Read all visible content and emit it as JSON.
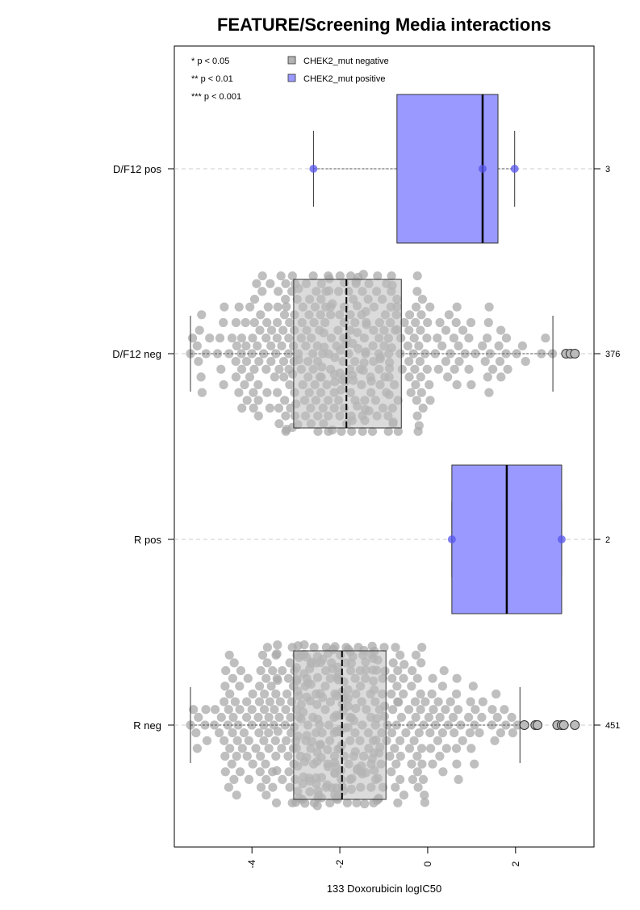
{
  "chart_data": {
    "type": "box",
    "orientation": "horizontal",
    "title": "FEATURE/Screening Media interactions",
    "xlabel": "133 Doxorubicin logIC50",
    "ylabel": "",
    "xlim": [
      -5.6,
      3.7
    ],
    "xticks": [
      -4,
      -2,
      0,
      2
    ],
    "xtick_labels": [
      "-4",
      "-2",
      "0",
      "2"
    ],
    "grid": false,
    "legend": {
      "placement": "top-left",
      "significance": [
        "* p < 0.05",
        "** p < 0.01",
        "*** p < 0.001"
      ],
      "entries": [
        {
          "label": "CHEK2_mut negative",
          "color": "#b3b3b3"
        },
        {
          "label": "CHEK2_mut positive",
          "color": "#9999ff"
        }
      ]
    },
    "colors": {
      "negative_box": "#bdbdbd",
      "positive_box": "#9999ff",
      "negative_point": "#aaaaaa",
      "positive_point": "#5555ee"
    },
    "groups": [
      {
        "label": "D/F12 pos",
        "status": "positive",
        "n_label": "3",
        "whisker_low": -2.6,
        "q1": -0.7,
        "median": 1.25,
        "q3": 1.6,
        "whisker_high": 1.98,
        "points": [
          -2.6,
          1.25,
          1.98
        ],
        "outliers": []
      },
      {
        "label": "D/F12 neg",
        "status": "negative",
        "n_label": "376",
        "whisker_low": -5.4,
        "q1": -3.05,
        "median": -1.85,
        "q3": -0.6,
        "whisker_high": 2.85,
        "outliers": [
          3.15,
          3.25,
          3.35
        ]
      },
      {
        "label": "R pos",
        "status": "positive",
        "n_label": "2",
        "whisker_low": 0.55,
        "q1": 0.55,
        "median": 1.8,
        "q3": 3.05,
        "whisker_high": 3.05,
        "points": [
          0.55,
          3.05
        ],
        "outliers": []
      },
      {
        "label": "R neg",
        "status": "negative",
        "n_label": "451",
        "whisker_low": -5.4,
        "q1": -3.05,
        "median": -1.95,
        "q3": -0.95,
        "whisker_high": 2.1,
        "outliers": [
          2.2,
          2.45,
          2.5,
          2.95,
          3.05,
          3.1,
          3.35
        ]
      }
    ]
  }
}
